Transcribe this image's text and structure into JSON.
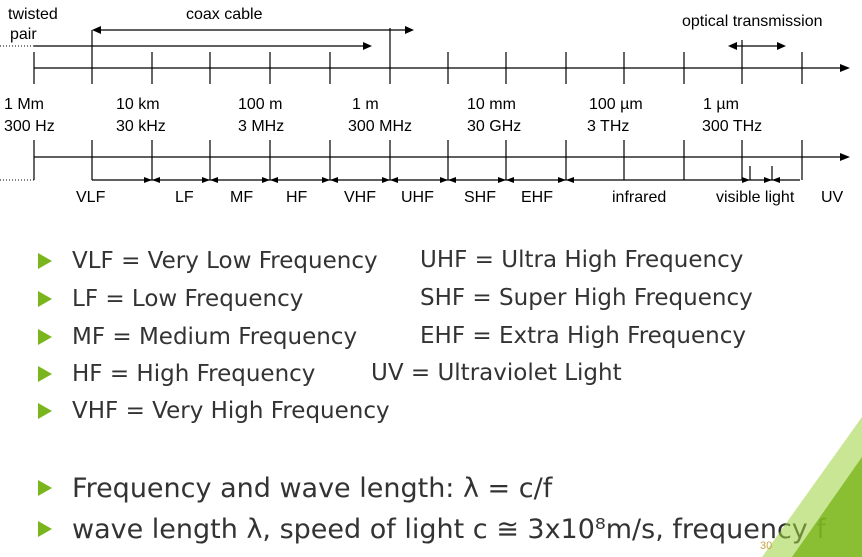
{
  "header_labels": {
    "twisted_pair_line1": "twisted",
    "twisted_pair_line2": "pair",
    "coax": "coax cable",
    "optical": "optical transmission"
  },
  "wavelength_ticks": [
    "1 Mm",
    "10 km",
    "100 m",
    "1 m",
    "10 mm",
    "100 µm",
    "1 µm"
  ],
  "frequency_ticks": [
    "300 Hz",
    "30 kHz",
    "3 MHz",
    "300 MHz",
    "30 GHz",
    "3 THz",
    "300 THz"
  ],
  "bands": [
    "VLF",
    "LF",
    "MF",
    "HF",
    "VHF",
    "UHF",
    "SHF",
    "EHF",
    "infrared",
    "visible light",
    "UV"
  ],
  "definitions_left": [
    "VLF = Very Low Frequency",
    "LF = Low Frequency",
    "MF = Medium Frequency",
    "HF = High Frequency",
    "VHF = Very High Frequency"
  ],
  "definitions_right": [
    "UHF = Ultra High Frequency",
    "SHF = Super High Frequency",
    "EHF = Extra High Frequency",
    "UV = Ultraviolet Light"
  ],
  "formula_line": "Frequency and wave length: λ = c/f",
  "constants_line": "wave length λ, speed of light c ≅ 3x10⁸m/s, frequency f",
  "page_number": "30",
  "colors": {
    "accent": "#7ab51d",
    "text": "#333333",
    "page_number": "#c6a545"
  }
}
